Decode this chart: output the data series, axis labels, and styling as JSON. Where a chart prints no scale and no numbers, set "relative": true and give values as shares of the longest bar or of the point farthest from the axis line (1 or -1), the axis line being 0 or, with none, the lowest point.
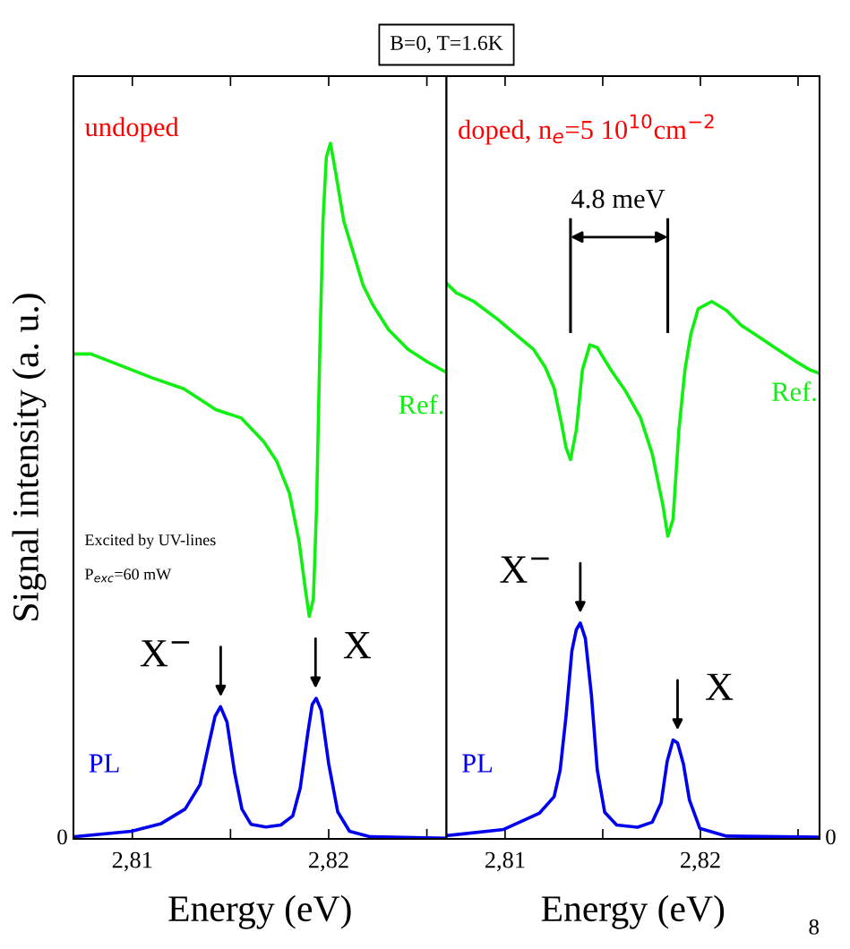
{
  "chart_data": [
    {
      "type": "line",
      "title": "B=0, T=1.6K",
      "xlabel": "Energy (eV)",
      "ylabel": "Signal intensity (a. u.)",
      "relative": true,
      "xlim": [
        2.807,
        2.826
      ],
      "xticks": [
        {
          "value": 2.81,
          "label": "2,81"
        },
        {
          "value": 2.815,
          "label": null
        },
        {
          "value": 2.82,
          "label": "2,82"
        },
        {
          "value": 2.825,
          "label": null
        }
      ],
      "series": [
        {
          "name": "Ref.",
          "color": "#11ee11",
          "x": [
            2.80707,
            2.80789,
            2.80936,
            2.81099,
            2.81262,
            2.81425,
            2.81555,
            2.81669,
            2.81735,
            2.818,
            2.81849,
            2.81881,
            2.81901,
            2.81922,
            2.81938,
            2.81955,
            2.81971,
            2.81988,
            2.82009,
            2.82036,
            2.82077,
            2.82126,
            2.82175,
            2.82224,
            2.82305,
            2.82403,
            2.82501,
            2.8259
          ],
          "values": [
            0.697,
            0.697,
            0.681,
            0.663,
            0.647,
            0.617,
            0.605,
            0.571,
            0.543,
            0.497,
            0.428,
            0.359,
            0.32,
            0.345,
            0.474,
            0.704,
            0.888,
            0.98,
            1.0,
            0.957,
            0.888,
            0.842,
            0.796,
            0.768,
            0.732,
            0.704,
            0.686,
            0.672
          ]
        },
        {
          "name": "PL",
          "color": "#0000ee",
          "x": [
            2.80706,
            2.80995,
            2.81147,
            2.81269,
            2.81345,
            2.81391,
            2.81421,
            2.81449,
            2.81482,
            2.81521,
            2.81558,
            2.81604,
            2.8168,
            2.81756,
            2.81817,
            2.81855,
            2.81893,
            2.81916,
            2.81936,
            2.81962,
            2.82,
            2.82046,
            2.82106,
            2.82213,
            2.82594
          ],
          "values": [
            0.003,
            0.011,
            0.022,
            0.043,
            0.078,
            0.138,
            0.176,
            0.19,
            0.168,
            0.095,
            0.043,
            0.021,
            0.017,
            0.02,
            0.033,
            0.073,
            0.151,
            0.193,
            0.202,
            0.185,
            0.108,
            0.039,
            0.011,
            0.003,
            0.001
          ]
        }
      ],
      "annotations": [
        "undoped",
        "Excited by UV-lines",
        "P$_{exc}$=60 mW",
        "0",
        {
          "text": "X$^{−}$",
          "x": 2.8145,
          "y": 0.19
        },
        {
          "text": "X",
          "x": 2.81933,
          "y": 0.202
        }
      ]
    },
    {
      "type": "line",
      "xlabel": "Energy (eV)",
      "relative": true,
      "xlim": [
        2.807,
        2.8261
      ],
      "xticks": [
        {
          "value": 2.81,
          "label": "2,81"
        },
        {
          "value": 2.815,
          "label": null
        },
        {
          "value": 2.82,
          "label": "2,82"
        },
        {
          "value": 2.825,
          "label": null
        }
      ],
      "series": [
        {
          "name": "Ref.",
          "color": "#11ee11",
          "x": [
            2.80702,
            2.80749,
            2.8084,
            2.80962,
            2.81053,
            2.81145,
            2.81205,
            2.81251,
            2.81289,
            2.81312,
            2.81335,
            2.81365,
            2.81396,
            2.81434,
            2.81472,
            2.81541,
            2.81616,
            2.81693,
            2.81753,
            2.81807,
            2.81833,
            2.8186,
            2.8189,
            2.81921,
            2.81951,
            2.81989,
            2.82058,
            2.82134,
            2.8221,
            2.82301,
            2.82393,
            2.82484,
            2.8256,
            2.82606
          ],
          "values": [
            1.0,
            0.984,
            0.968,
            0.936,
            0.909,
            0.882,
            0.85,
            0.812,
            0.748,
            0.705,
            0.683,
            0.737,
            0.845,
            0.89,
            0.885,
            0.845,
            0.807,
            0.759,
            0.694,
            0.603,
            0.545,
            0.576,
            0.737,
            0.845,
            0.909,
            0.955,
            0.968,
            0.952,
            0.925,
            0.904,
            0.882,
            0.861,
            0.845,
            0.839
          ]
        },
        {
          "name": "PL",
          "color": "#0000ee",
          "x": [
            2.80703,
            2.80993,
            2.81175,
            2.81251,
            2.81282,
            2.81312,
            2.81342,
            2.81365,
            2.81385,
            2.81411,
            2.81442,
            2.81472,
            2.8151,
            2.81571,
            2.81678,
            2.81753,
            2.81799,
            2.8183,
            2.8186,
            2.81883,
            2.81913,
            2.81944,
            2.81997,
            2.82134,
            2.82598
          ],
          "values": [
            0.006,
            0.017,
            0.046,
            0.076,
            0.124,
            0.221,
            0.339,
            0.377,
            0.389,
            0.361,
            0.259,
            0.124,
            0.048,
            0.025,
            0.021,
            0.03,
            0.065,
            0.14,
            0.178,
            0.173,
            0.135,
            0.07,
            0.019,
            0.005,
            0.003
          ]
        }
      ],
      "annotations": [
        "doped, n$_{e}$=5 10$^{10}$cm$^{−2}$",
        "0",
        "8",
        "4.8 meV",
        {
          "text": "X$^{−}$",
          "x": 2.81385,
          "y": 0.389
        },
        {
          "text": "X",
          "x": 2.81883,
          "y": 0.178
        }
      ]
    }
  ]
}
